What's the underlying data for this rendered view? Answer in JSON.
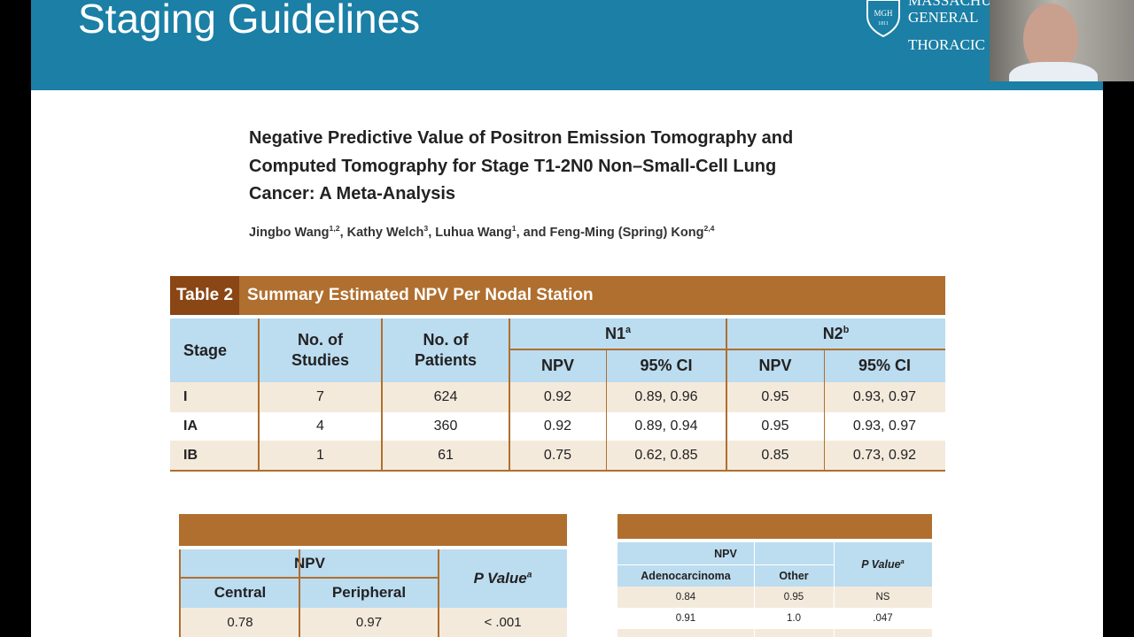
{
  "header": {
    "title": "Staging Guidelines",
    "logo": {
      "badge": [
        "MGH",
        "1811"
      ],
      "lines": [
        "MASSACHU",
        "GENERAL",
        "THORACIC"
      ]
    }
  },
  "paper": {
    "title_lines": [
      "Negative Predictive Value of Positron Emission Tomography and",
      "Computed Tomography for Stage T1-2N0 Non–Small-Cell Lung",
      "Cancer: A Meta-Analysis"
    ],
    "authors": [
      {
        "name": "Jingbo Wang",
        "affiliations": "1,2"
      },
      {
        "name": "Kathy Welch",
        "affiliations": "3"
      },
      {
        "name": "Luhua Wang",
        "affiliations": "1"
      },
      {
        "name": "Feng-Ming (Spring) Kong",
        "affiliations": "2,4"
      }
    ],
    "separators": [
      ", ",
      ", ",
      ", and "
    ]
  },
  "table2": {
    "label": "Table 2",
    "caption": "Summary Estimated NPV Per Nodal Station",
    "columns": [
      "Stage",
      "No. of Studies",
      "No. of Patients"
    ],
    "groups": [
      {
        "name": "N1",
        "note": "a"
      },
      {
        "name": "N2",
        "note": "b"
      }
    ],
    "subcolumns": [
      "NPV",
      "95% CI",
      "NPV",
      "95% CI"
    ],
    "rows": [
      [
        "I",
        "7",
        "624",
        "0.92",
        "0.89, 0.96",
        "0.95",
        "0.93, 0.97"
      ],
      [
        "IA",
        "4",
        "360",
        "0.92",
        "0.89, 0.94",
        "0.95",
        "0.93, 0.97"
      ],
      [
        "IB",
        "1",
        "61",
        "0.75",
        "0.62, 0.85",
        "0.85",
        "0.73, 0.92"
      ]
    ]
  },
  "table_location": {
    "group": "NPV",
    "columns": [
      "Central",
      "Peripheral"
    ],
    "p_value": {
      "label": "P Value",
      "note": "a"
    },
    "rows": [
      [
        "0.78",
        "0.97",
        "< .001"
      ]
    ]
  },
  "table_histology": {
    "group": "NPV",
    "columns": [
      "Adenocarcinoma",
      "Other"
    ],
    "p_value": {
      "label": "P Value",
      "note": "a"
    },
    "rows": [
      [
        "0.84",
        "0.95",
        "NS"
      ],
      [
        "0.91",
        "1.0",
        ".047"
      ]
    ]
  }
}
